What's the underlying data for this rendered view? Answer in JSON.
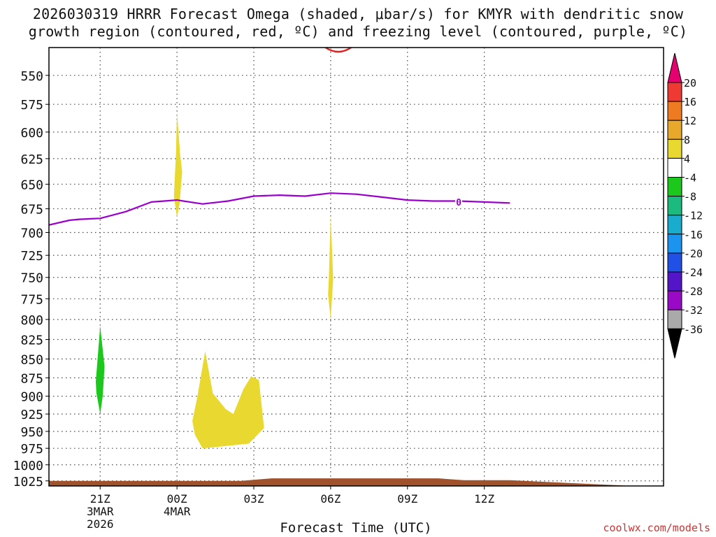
{
  "chart_data": {
    "type": "heatmap",
    "title_line1": "2026030319 HRRR Forecast Omega (shaded, μbar/s) for KMYR with dendritic snow",
    "title_line2": "growth region (contoured, red, ºC) and freezing level (contoured, purple, ºC)",
    "xlabel": "Forecast Time (UTC)",
    "credit": "coolwx.com/models",
    "x_axis": {
      "unit": "hours from 2026-03-03 19Z",
      "range": [
        0,
        24
      ],
      "ticks": [
        {
          "hour": 2,
          "label": "21Z",
          "sublabels": [
            "3MAR",
            "2026"
          ]
        },
        {
          "hour": 5,
          "label": "00Z",
          "sublabels": [
            "4MAR"
          ]
        },
        {
          "hour": 8,
          "label": "03Z",
          "sublabels": []
        },
        {
          "hour": 11,
          "label": "06Z",
          "sublabels": []
        },
        {
          "hour": 14,
          "label": "09Z",
          "sublabels": []
        },
        {
          "hour": 17,
          "label": "12Z",
          "sublabels": []
        }
      ]
    },
    "y_axis": {
      "unit": "hPa",
      "scale": "log-pressure",
      "range": [
        1033,
        527
      ],
      "ticks": [
        550,
        575,
        600,
        625,
        650,
        675,
        700,
        725,
        750,
        775,
        800,
        825,
        850,
        875,
        900,
        925,
        950,
        975,
        1000,
        1025
      ]
    },
    "grid": true,
    "colorbar": {
      "labels": [
        "20",
        "16",
        "12",
        "8",
        "4",
        "-4",
        "-8",
        "-12",
        "-16",
        "-20",
        "-24",
        "-28",
        "-32",
        "-36"
      ],
      "colors": [
        "#e4006e",
        "#ee3a33",
        "#ee7a22",
        "#e8a82c",
        "#e8d830",
        "#ffffff",
        "#1dc81d",
        "#1dba80",
        "#1aaccc",
        "#1a94ee",
        "#2050e6",
        "#5414c8",
        "#9a0ac6",
        "#aaaaaa",
        "#000000"
      ]
    },
    "freezing_level": {
      "color": "#9900cc",
      "label": "0",
      "label_hour": 16.0,
      "label_hpa": 668,
      "points": [
        [
          0,
          692
        ],
        [
          0.8,
          687
        ],
        [
          1.2,
          686
        ],
        [
          2.0,
          685
        ],
        [
          3.0,
          678
        ],
        [
          4.0,
          668
        ],
        [
          5.0,
          666
        ],
        [
          6.0,
          670
        ],
        [
          7.0,
          667
        ],
        [
          8.0,
          662
        ],
        [
          9.0,
          661
        ],
        [
          10.0,
          662
        ],
        [
          11.0,
          659
        ],
        [
          12.0,
          660
        ],
        [
          13.0,
          663
        ],
        [
          14.0,
          666
        ],
        [
          15.0,
          667
        ],
        [
          16.0,
          667
        ],
        [
          17.0,
          668
        ],
        [
          18.0,
          669
        ]
      ]
    },
    "omega_shading": [
      {
        "name": "upward-4to8-00z",
        "range": "4 to 8",
        "color": "#e8d830",
        "points": [
          [
            4.88,
            662
          ],
          [
            4.96,
            620
          ],
          [
            5.0,
            582
          ],
          [
            5.12,
            620
          ],
          [
            5.2,
            638
          ],
          [
            5.1,
            670
          ],
          [
            5.0,
            684
          ]
        ]
      },
      {
        "name": "upward-4to8-06z",
        "range": "4 to 8",
        "color": "#e8d830",
        "points": [
          [
            10.93,
            752
          ],
          [
            11.0,
            682
          ],
          [
            11.1,
            752
          ],
          [
            11.0,
            800
          ],
          [
            10.9,
            770
          ]
        ]
      },
      {
        "name": "downward-minus4to8-21z",
        "range": "-4 to -8",
        "color": "#1dc81d",
        "points": [
          [
            1.83,
            880
          ],
          [
            2.0,
            808
          ],
          [
            2.17,
            860
          ],
          [
            2.1,
            900
          ],
          [
            2.0,
            925
          ],
          [
            1.85,
            895
          ]
        ]
      },
      {
        "name": "upward-4to8-lower",
        "range": "4 to 8",
        "color": "#e8d830",
        "points": [
          [
            6.0,
            975
          ],
          [
            7.8,
            968
          ],
          [
            8.4,
            945
          ],
          [
            8.2,
            878
          ],
          [
            7.9,
            873
          ],
          [
            7.6,
            890
          ],
          [
            7.2,
            925
          ],
          [
            6.9,
            918
          ],
          [
            6.4,
            896
          ],
          [
            6.1,
            840
          ],
          [
            5.8,
            900
          ],
          [
            5.6,
            935
          ],
          [
            5.7,
            955
          ]
        ]
      }
    ],
    "dgz_contour": {
      "color": "#dd2222",
      "center_hour": 11.3,
      "top_hpa": 527,
      "bottom_hpa": 531,
      "half_width_hours": 0.5
    },
    "ground": {
      "color": "#a0522d",
      "top_points": [
        [
          0,
          1025
        ],
        [
          7.5,
          1025
        ],
        [
          8.7,
          1021
        ],
        [
          15.2,
          1021
        ],
        [
          16.2,
          1024
        ],
        [
          18.0,
          1024
        ]
      ]
    }
  }
}
